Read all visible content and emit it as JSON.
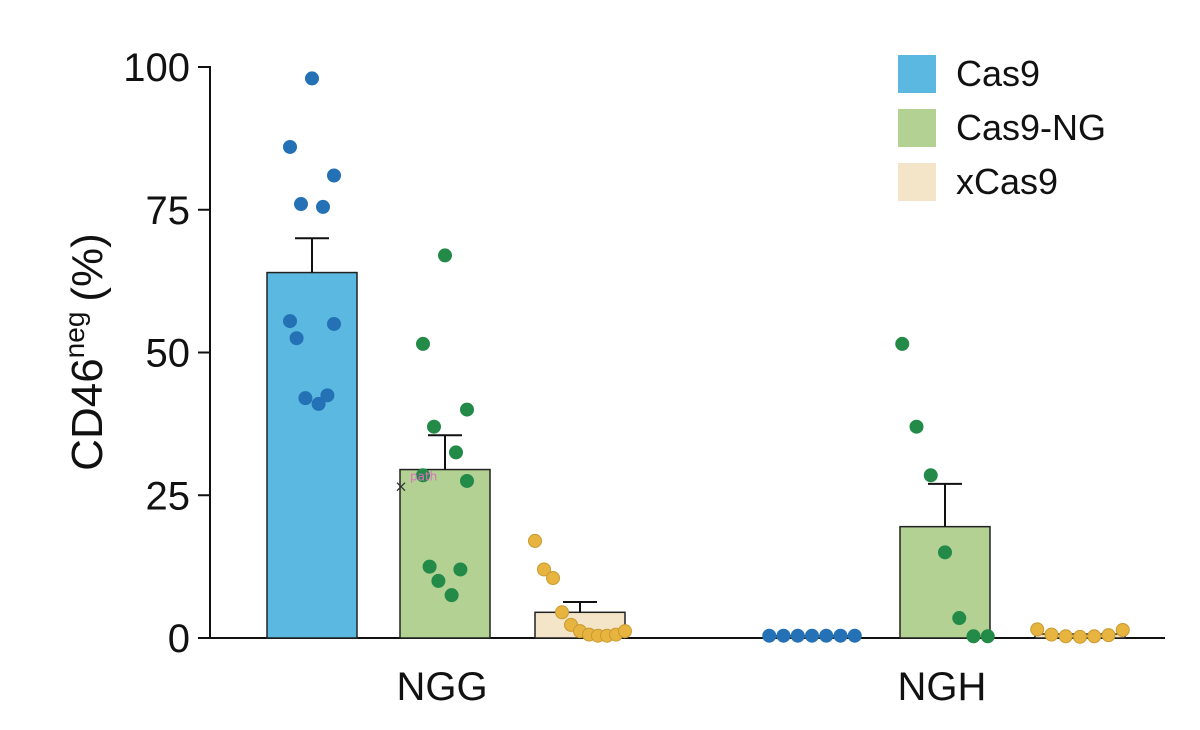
{
  "chart_data": {
    "type": "bar",
    "categories": [
      "NGG",
      "NGH"
    ],
    "ylabel": {
      "main": "CD46",
      "sup": "neg",
      "unit": "(%)"
    },
    "ylim": [
      0,
      100
    ],
    "yticks": [
      "0",
      "25",
      "50",
      "75",
      "100"
    ],
    "grid": false,
    "legend_position": "top-right",
    "annotation": {
      "text": "path",
      "color": "#e070c0"
    },
    "series": [
      {
        "name": "Cas9",
        "bar_color": "#5bb8e0",
        "dot_color": "#2471b5",
        "values": [
          64,
          0.4
        ],
        "errors": [
          6,
          0
        ],
        "points": [
          [
            98,
            86,
            81,
            76,
            75.5,
            55.5,
            55,
            52.5,
            42.5,
            42,
            41
          ],
          [
            0.4,
            0.4,
            0.4,
            0.4,
            0.4,
            0.4,
            0.4
          ]
        ]
      },
      {
        "name": "Cas9-NG",
        "bar_color": "#b2d193",
        "dot_color": "#238a48",
        "values": [
          29.5,
          19.5
        ],
        "errors": [
          6,
          7.5
        ],
        "points": [
          [
            67,
            51.5,
            40,
            37,
            32.5,
            28.5,
            27.5,
            12.5,
            12,
            10,
            7.5
          ],
          [
            51.5,
            37,
            28.5,
            15,
            3.5,
            0.3,
            0.3
          ]
        ]
      },
      {
        "name": "xCas9",
        "bar_color": "#f5e5c8",
        "dot_color": "#e8b440",
        "values": [
          4.5,
          0.7
        ],
        "errors": [
          1.8,
          0
        ],
        "points": [
          [
            17,
            12,
            10.5,
            4.5,
            2.3,
            1.2,
            0.6,
            0.4,
            0.4,
            0.6,
            1.2
          ],
          [
            1.5,
            0.6,
            0.3,
            0.2,
            0.3,
            0.5,
            1.4
          ]
        ]
      }
    ]
  }
}
